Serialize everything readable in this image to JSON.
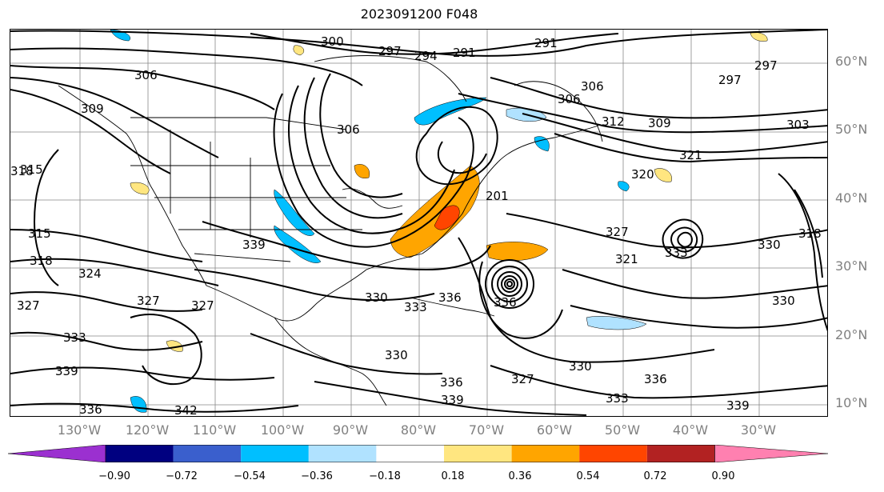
{
  "title": "2023091200 F048",
  "lat_labels": [
    "60°N",
    "50°N",
    "40°N",
    "30°N",
    "20°N",
    "10°N"
  ],
  "lon_labels": [
    "130°W",
    "120°W",
    "110°W",
    "100°W",
    "90°W",
    "80°W",
    "70°W",
    "60°W",
    "50°W",
    "40°W",
    "30°W"
  ],
  "colorbar": {
    "ticks": [
      "−0.90",
      "−0.72",
      "−0.54",
      "−0.36",
      "−0.18",
      "0.18",
      "0.36",
      "0.54",
      "0.72",
      "0.90"
    ],
    "colors": [
      "#9b30d0",
      "#000080",
      "#3a5fcd",
      "#00bfff",
      "#b0e2ff",
      "#ffffff",
      "#ffe680",
      "#ffa500",
      "#ff4500",
      "#b22222",
      "#ff80b0"
    ]
  },
  "contour_labels": {
    "l291a": "291",
    "l291b": "291",
    "l294": "294",
    "l297a": "297",
    "l297b": "297",
    "l297c": "297",
    "l300": "300",
    "l303": "303",
    "l306a": "306",
    "l306b": "306",
    "l306c": "306",
    "l306d": "306",
    "l309a": "309",
    "l309b": "309",
    "l312": "312",
    "l315a": "315",
    "l315b": "315",
    "l318a": "318",
    "l318b": "318",
    "l318c": "318",
    "l320": "320",
    "l321a": "321",
    "l321b": "321",
    "l324": "324",
    "l327a": "327",
    "l327b": "327",
    "l327c": "327",
    "l327d": "327",
    "l327e": "327",
    "l330a": "330",
    "l330b": "330",
    "l330c": "330",
    "l330d": "330",
    "l330e": "330",
    "l333a": "333",
    "l333b": "333",
    "l333c": "333",
    "l333d": "333",
    "l336a": "336",
    "l336b": "336",
    "l336c": "336",
    "l336d": "336",
    "l336e": "336",
    "l339a": "339",
    "l339b": "339",
    "l339c": "339",
    "l339d": "339",
    "l342": "342",
    "l201": "201"
  }
}
